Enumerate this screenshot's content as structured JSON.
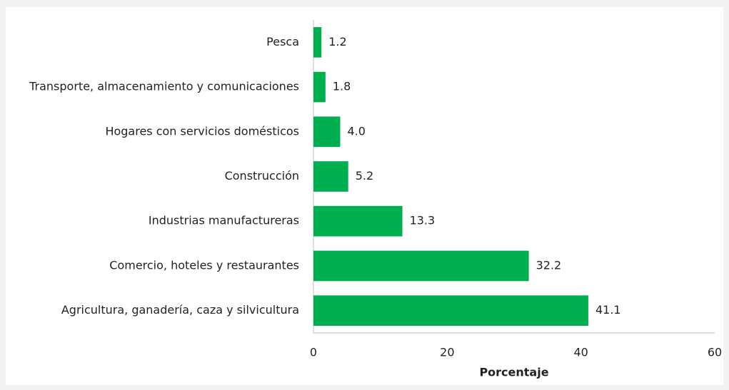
{
  "chart_data": {
    "type": "bar",
    "orientation": "horizontal",
    "x_label": "Porcentaje",
    "categories": [
      "Pesca",
      "Transporte, almacenamiento y comunicaciones",
      "Hogares con servicios domésticos",
      "Construcción",
      "Industrias manufactureras",
      "Comercio, hoteles y restaurantes",
      "Agricultura, ganadería, caza y silvicultura"
    ],
    "values": [
      1.2,
      1.8,
      4.0,
      5.2,
      13.3,
      32.2,
      41.1
    ],
    "value_labels": [
      "1.2",
      "1.8",
      "4.0",
      "5.2",
      "13.3",
      "32.2",
      "41.1"
    ],
    "color": "#00b050",
    "xlim": [
      0,
      60
    ],
    "xticks": [
      0,
      20,
      40,
      60
    ],
    "grid": false
  }
}
